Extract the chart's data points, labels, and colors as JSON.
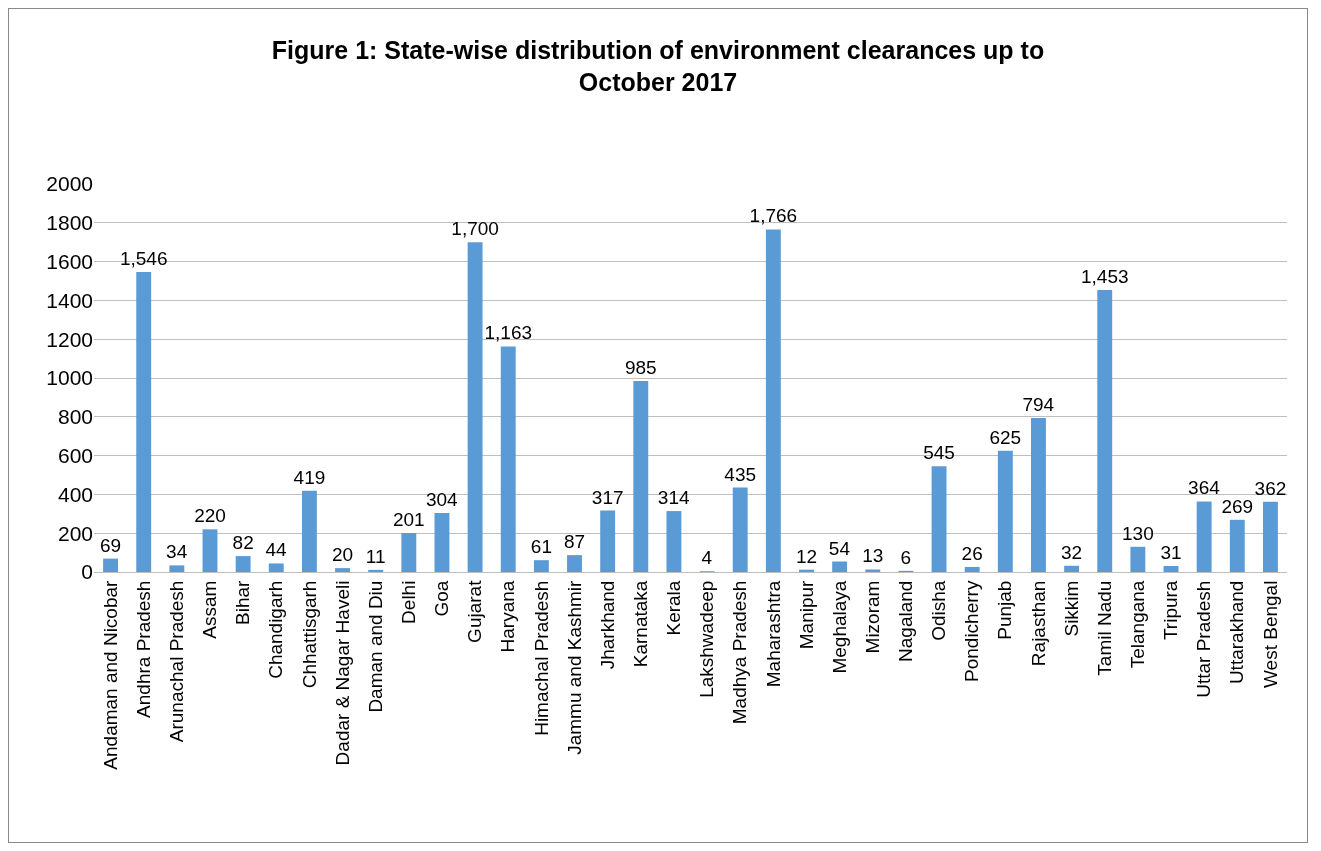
{
  "chart_data": {
    "type": "bar",
    "title": "Figure 1: State-wise distribution of environment clearances up to October 2017",
    "categories": [
      "Andaman and Nicobar",
      "Andhra Pradesh",
      "Arunachal Pradesh",
      "Assam",
      "Bihar",
      "Chandigarh",
      "Chhattisgarh",
      "Dadar & Nagar Haveli",
      "Daman and Diu",
      "Delhi",
      "Goa",
      "Gujarat",
      "Haryana",
      "Himachal Pradesh",
      "Jammu and Kashmir",
      "Jharkhand",
      "Karnataka",
      "Kerala",
      "Lakshwadeep",
      "Madhya Pradesh",
      "Maharashtra",
      "Manipur",
      "Meghalaya",
      "Mizoram",
      "Nagaland",
      "Odisha",
      "Pondicherry",
      "Punjab",
      "Rajasthan",
      "Sikkim",
      "Tamil Nadu",
      "Telangana",
      "Tripura",
      "Uttar Pradesh",
      "Uttarakhand",
      "West Bengal"
    ],
    "values": [
      69,
      1546,
      34,
      220,
      82,
      44,
      419,
      20,
      11,
      201,
      304,
      1700,
      1163,
      61,
      87,
      317,
      985,
      314,
      4,
      435,
      1766,
      12,
      54,
      13,
      6,
      545,
      26,
      625,
      794,
      32,
      1453,
      130,
      31,
      364,
      269,
      362
    ],
    "value_labels": [
      "69",
      "1,546",
      "34",
      "220",
      "82",
      "44",
      "419",
      "20",
      "11",
      "201",
      "304",
      "1,700",
      "1,163",
      "61",
      "87",
      "317",
      "985",
      "314",
      "4",
      "435",
      "1,766",
      "12",
      "54",
      "13",
      "6",
      "545",
      "26",
      "625",
      "794",
      "32",
      "1,453",
      "130",
      "31",
      "364",
      "269",
      "362"
    ],
    "color": "#5b9bd5",
    "ylim": [
      0,
      2000
    ],
    "yticks": [
      0,
      200,
      400,
      600,
      800,
      1000,
      1200,
      1400,
      1600,
      1800,
      2000
    ],
    "grid": "y",
    "legend": false
  }
}
